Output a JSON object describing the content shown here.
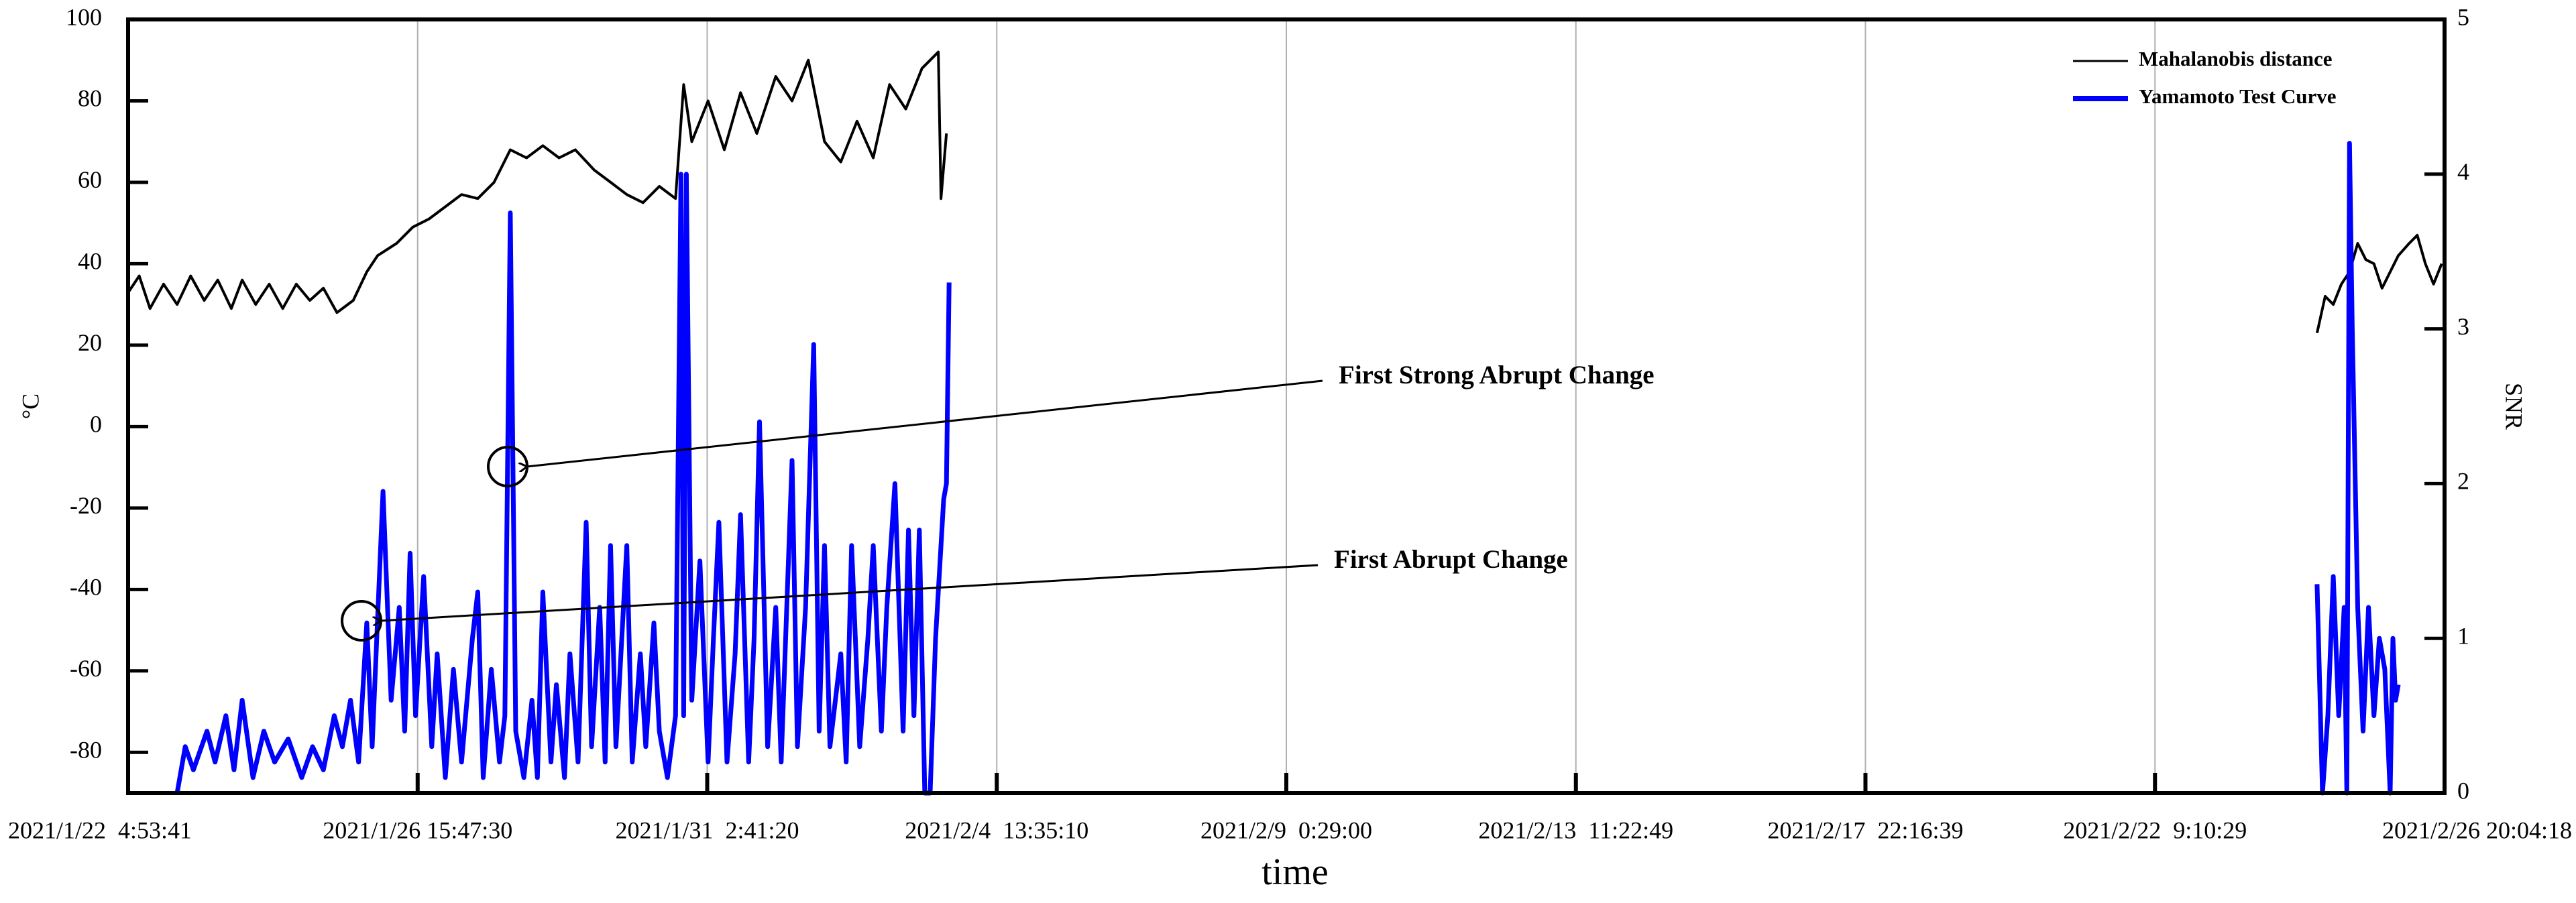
{
  "chart_data": {
    "type": "line",
    "x_label": "time",
    "y_label": "°C",
    "y2_label": "SNR",
    "xlim": [
      "2021/1/22  4:53:41",
      "2021/2/26 20:04:18"
    ],
    "xticks": [
      "2021/1/22  4:53:41",
      "2021/1/26 15:47:30",
      "2021/1/31  2:41:20",
      "2021/2/4  13:35:10",
      "2021/2/9  0:29:00",
      "2021/2/13  11:22:49",
      "2021/2/17  22:16:39",
      "2021/2/22  9:10:29",
      "2021/2/26 20:04:18"
    ],
    "ylim": [
      -90,
      100
    ],
    "yticks": [
      -80,
      -60,
      -40,
      -20,
      0,
      20,
      40,
      60,
      80,
      100
    ],
    "y2lim": [
      0,
      5
    ],
    "y2ticks": [
      0,
      1,
      2,
      3,
      4,
      5
    ],
    "grid": "x",
    "legend": "top-right",
    "series": [
      {
        "name": "Mahalanobis distance",
        "color": "#000000",
        "x": [
          "2021/1/22 5:00:00",
          "2021/1/22 9:00:00",
          "2021/1/22 13:00:00",
          "2021/1/22 18:00:00",
          "2021/1/22 23:00:00",
          "2021/1/23 4:00:00",
          "2021/1/23 9:00:00",
          "2021/1/23 14:00:00",
          "2021/1/23 19:00:00",
          "2021/1/23 23:00:00",
          "2021/1/24 4:00:00",
          "2021/1/24 9:00:00",
          "2021/1/24 14:00:00",
          "2021/1/24 19:00:00",
          "2021/1/25 0:00:00",
          "2021/1/25 5:00:00",
          "2021/1/25 10:00:00",
          "2021/1/25 16:00:00",
          "2021/1/25 21:00:00",
          "2021/1/26 1:00:00",
          "2021/1/26 8:00:00",
          "2021/1/26 14:00:00",
          "2021/1/26 20:00:00",
          "2021/1/27 2:00:00",
          "2021/1/27 8:00:00",
          "2021/1/27 14:00:00",
          "2021/1/27 20:00:00",
          "2021/1/28 2:00:00",
          "2021/1/28 8:00:00",
          "2021/1/28 14:00:00",
          "2021/1/28 20:00:00",
          "2021/1/29 2:00:00",
          "2021/1/29 9:00:00",
          "2021/1/29 15:00:00",
          "2021/1/29 21:00:00",
          "2021/1/30 3:00:00",
          "2021/1/30 9:00:00",
          "2021/1/30 15:00:00",
          "2021/1/30 18:00:00",
          "2021/1/30 21:00:00",
          "2021/1/31 3:00:00",
          "2021/1/31 9:00:00",
          "2021/1/31 15:00:00",
          "2021/1/31 21:00:00",
          "2021/2/1 4:00:00",
          "2021/2/1 10:00:00",
          "2021/2/1 16:00:00",
          "2021/2/1 22:00:00",
          "2021/2/2 4:00:00",
          "2021/2/2 10:00:00",
          "2021/2/2 16:00:00",
          "2021/2/2 22:00:00",
          "2021/2/3 4:00:00",
          "2021/2/3 10:00:00",
          "2021/2/3 16:00:00",
          "2021/2/3 17:00:00",
          "2021/2/3 19:00:00",
          "2021/2/14 0:00:00",
          "2021/2/24 21:00:00",
          "2021/2/25 0:00:00",
          "2021/2/25 3:00:00",
          "2021/2/25 6:00:00",
          "2021/2/25 9:00:00",
          "2021/2/25 12:00:00",
          "2021/2/25 15:00:00",
          "2021/2/25 18:00:00",
          "2021/2/25 21:00:00",
          "2021/2/26 0:00:00",
          "2021/2/26 3:00:00",
          "2021/2/26 7:00:00",
          "2021/2/26 10:00:00",
          "2021/2/26 13:00:00",
          "2021/2/26 16:00:00",
          "2021/2/26 19:00:00"
        ],
        "values": [
          33,
          37,
          29,
          35,
          30,
          37,
          31,
          36,
          29,
          36,
          30,
          35,
          29,
          35,
          31,
          34,
          28,
          31,
          38,
          42,
          45,
          49,
          51,
          54,
          57,
          56,
          60,
          68,
          66,
          69,
          66,
          68,
          63,
          60,
          57,
          55,
          59,
          56,
          84,
          70,
          80,
          68,
          82,
          72,
          86,
          80,
          90,
          70,
          65,
          75,
          66,
          84,
          78,
          88,
          92,
          56,
          72,
          null,
          23,
          32,
          30,
          35,
          38,
          45,
          41,
          40,
          34,
          38,
          42,
          45,
          47,
          40,
          35,
          40
        ]
      },
      {
        "name": "Yamamoto Test Curve",
        "color": "#0000ff",
        "axis": "y2",
        "x": [
          "2021/1/22 23:00:00",
          "2021/1/23 2:00:00",
          "2021/1/23 5:00:00",
          "2021/1/23 10:00:00",
          "2021/1/23 13:00:00",
          "2021/1/23 17:00:00",
          "2021/1/23 20:00:00",
          "2021/1/23 23:00:00",
          "2021/1/24 3:00:00",
          "2021/1/24 7:00:00",
          "2021/1/24 11:00:00",
          "2021/1/24 16:00:00",
          "2021/1/24 21:00:00",
          "2021/1/25 1:00:00",
          "2021/1/25 5:00:00",
          "2021/1/25 9:00:00",
          "2021/1/25 12:00:00",
          "2021/1/25 15:00:00",
          "2021/1/25 18:00:00",
          "2021/1/25 21:00:00",
          "2021/1/25 23:00:00",
          "2021/1/26 3:00:00",
          "2021/1/26 6:00:00",
          "2021/1/26 9:00:00",
          "2021/1/26 11:00:00",
          "2021/1/26 13:00:00",
          "2021/1/26 15:00:00",
          "2021/1/26 18:00:00",
          "2021/1/26 21:00:00",
          "2021/1/26 23:00:00",
          "2021/1/27 2:00:00",
          "2021/1/27 5:00:00",
          "2021/1/27 8:00:00",
          "2021/1/27 12:00:00",
          "2021/1/27 14:00:00",
          "2021/1/27 16:00:00",
          "2021/1/27 19:00:00",
          "2021/1/27 22:00:00",
          "2021/1/28 0:00:00",
          "2021/1/28 2:00:00",
          "2021/1/28 4:00:00",
          "2021/1/28 7:00:00",
          "2021/1/28 10:00:00",
          "2021/1/28 12:00:00",
          "2021/1/28 14:00:00",
          "2021/1/28 17:00:00",
          "2021/1/28 19:00:00",
          "2021/1/28 22:00:00",
          "2021/1/29 0:00:00",
          "2021/1/29 3:00:00",
          "2021/1/29 6:00:00",
          "2021/1/29 8:00:00",
          "2021/1/29 11:00:00",
          "2021/1/29 13:00:00",
          "2021/1/29 15:00:00",
          "2021/1/29 17:00:00",
          "2021/1/29 21:00:00",
          "2021/1/29 23:00:00",
          "2021/1/30 2:00:00",
          "2021/1/30 4:00:00",
          "2021/1/30 7:00:00",
          "2021/1/30 9:00:00",
          "2021/1/30 12:00:00",
          "2021/1/30 15:00:00",
          "2021/1/30 17:00:00",
          "2021/1/30 18:00:00",
          "2021/1/30 19:00:00",
          "2021/1/30 21:00:00",
          "2021/1/31 0:00:00",
          "2021/1/31 3:00:00",
          "2021/1/31 5:00:00",
          "2021/1/31 7:00:00",
          "2021/1/31 10:00:00",
          "2021/1/31 13:00:00",
          "2021/1/31 15:00:00",
          "2021/1/31 18:00:00",
          "2021/1/31 20:00:00",
          "2021/1/31 22:00:00",
          "2021/2/1 1:00:00",
          "2021/2/1 4:00:00",
          "2021/2/1 6:00:00",
          "2021/2/1 10:00:00",
          "2021/2/1 12:00:00",
          "2021/2/1 15:00:00",
          "2021/2/1 18:00:00",
          "2021/2/1 20:00:00",
          "2021/2/1 22:00:00",
          "2021/2/2 0:00:00",
          "2021/2/2 4:00:00",
          "2021/2/2 6:00:00",
          "2021/2/2 8:00:00",
          "2021/2/2 11:00:00",
          "2021/2/2 14:00:00",
          "2021/2/2 16:00:00",
          "2021/2/2 19:00:00",
          "2021/2/2 21:00:00",
          "2021/2/3 0:00:00",
          "2021/2/3 3:00:00",
          "2021/2/3 5:00:00",
          "2021/2/3 7:00:00",
          "2021/2/3 9:00:00",
          "2021/2/3 11:00:00",
          "2021/2/3 13:00:00",
          "2021/2/3 15:00:00",
          "2021/2/3 17:00:00",
          "2021/2/3 18:00:00",
          "2021/2/3 19:00:00",
          "2021/2/3 20:00:00",
          "2021/2/14 0:00:00",
          "2021/2/24 21:00:00",
          "2021/2/24 23:00:00",
          "2021/2/25 1:00:00",
          "2021/2/25 3:00:00",
          "2021/2/25 5:00:00",
          "2021/2/25 7:00:00",
          "2021/2/25 8:00:00",
          "2021/2/25 9:00:00",
          "2021/2/25 10:00:00",
          "2021/2/25 12:00:00",
          "2021/2/25 14:00:00",
          "2021/2/25 16:00:00",
          "2021/2/25 18:00:00",
          "2021/2/25 20:00:00",
          "2021/2/25 22:00:00",
          "2021/2/26 0:00:00",
          "2021/2/26 1:00:00",
          "2021/2/26 2:00:00",
          "2021/2/26 3:00:00"
        ],
        "values": [
          0,
          0.3,
          0.15,
          0.4,
          0.2,
          0.5,
          0.15,
          0.6,
          0.1,
          0.4,
          0.2,
          0.35,
          0.1,
          0.3,
          0.15,
          0.5,
          0.3,
          0.6,
          0.2,
          1.1,
          0.3,
          1.95,
          0.6,
          1.2,
          0.4,
          1.55,
          0.5,
          1.4,
          0.3,
          0.9,
          0.1,
          0.8,
          0.2,
          1.0,
          1.3,
          0.1,
          0.8,
          0.2,
          0.5,
          3.75,
          0.4,
          0.1,
          0.6,
          0.1,
          1.3,
          0.2,
          0.7,
          0.1,
          0.9,
          0.2,
          1.75,
          0.3,
          1.2,
          0.2,
          1.6,
          0.3,
          1.6,
          0.2,
          0.9,
          0.3,
          1.1,
          0.4,
          0.1,
          0.5,
          4,
          0.5,
          4,
          0.6,
          1.5,
          0.2,
          1.0,
          1.75,
          0.2,
          0.9,
          1.8,
          0.2,
          1.0,
          2.4,
          0.3,
          1.2,
          0.2,
          2.15,
          0.3,
          1.2,
          2.9,
          0.4,
          1.6,
          0.3,
          0.9,
          0.2,
          1.6,
          0.3,
          1.0,
          1.6,
          0.4,
          1.2,
          2.0,
          0.4,
          1.7,
          0.5,
          1.7,
          0,
          0,
          1.0,
          1.6,
          1.9,
          2.0,
          3.3,
          null,
          1.35,
          0,
          0.5,
          1.4,
          0.5,
          1.2,
          0,
          4.2,
          3,
          1.2,
          0.4,
          1.2,
          0.5,
          1.0,
          0.8,
          0,
          1.0,
          0.6,
          0.7
        ]
      }
    ],
    "annotations": [
      "First Strong Abrupt Change",
      "First Abrupt Change"
    ]
  }
}
